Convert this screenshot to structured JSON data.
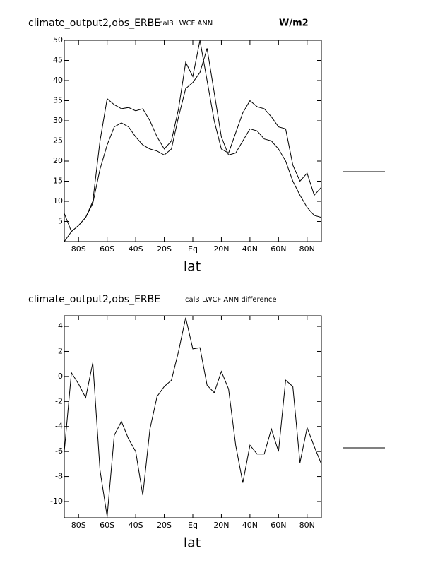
{
  "chart_data": [
    {
      "type": "line",
      "title": "climate_output2,obs_ERBE",
      "subtitle": "cal3 LWCF ANN",
      "units": "W/m2",
      "xlabel": "lat",
      "x": [
        -90,
        -85,
        -80,
        -75,
        -70,
        -65,
        -60,
        -55,
        -50,
        -45,
        -40,
        -35,
        -30,
        -25,
        -20,
        -15,
        -10,
        -5,
        0,
        5,
        10,
        15,
        20,
        25,
        30,
        35,
        40,
        45,
        50,
        55,
        60,
        65,
        70,
        75,
        80,
        85,
        90
      ],
      "series": [
        {
          "color": "#000000",
          "values": [
            7,
            2.5,
            4,
            6,
            10,
            25,
            35.5,
            34,
            33,
            33.3,
            32.5,
            33,
            30,
            26,
            23,
            25,
            33,
            44.5,
            41,
            50,
            40,
            30,
            23,
            22,
            27,
            32,
            35,
            33.5,
            33,
            31,
            28.5,
            28,
            19,
            15,
            17,
            11.5,
            13.5
          ]
        },
        {
          "color": "#000000",
          "values": [
            0,
            2.5,
            4,
            6,
            9.5,
            18,
            24,
            28.5,
            29.5,
            28.5,
            26,
            24,
            23,
            22.5,
            21.5,
            23,
            31,
            38,
            39.5,
            42,
            48,
            37,
            26,
            21.5,
            22,
            25,
            28,
            27.5,
            25.5,
            25,
            23,
            20,
            15,
            11.5,
            8.5,
            6.5,
            6
          ]
        }
      ],
      "xlim": [
        -90,
        90
      ],
      "ylim": [
        0,
        50
      ],
      "xticks": [
        {
          "value": -80,
          "label": "80S"
        },
        {
          "value": -60,
          "label": "60S"
        },
        {
          "value": -40,
          "label": "40S"
        },
        {
          "value": -20,
          "label": "20S"
        },
        {
          "value": 0,
          "label": "Eq"
        },
        {
          "value": 20,
          "label": "20N"
        },
        {
          "value": 40,
          "label": "40N"
        },
        {
          "value": 60,
          "label": "60N"
        },
        {
          "value": 80,
          "label": "80N"
        }
      ],
      "yticks": [
        5,
        10,
        15,
        20,
        25,
        30,
        35,
        40,
        45,
        50
      ]
    },
    {
      "type": "line",
      "title": "climate_output2,obs_ERBE",
      "subtitle": "cal3 LWCF ANN difference",
      "xlabel": "lat",
      "x": [
        -90,
        -85,
        -80,
        -75,
        -70,
        -65,
        -60,
        -55,
        -50,
        -45,
        -40,
        -35,
        -30,
        -25,
        -20,
        -15,
        -10,
        -5,
        0,
        5,
        10,
        15,
        20,
        25,
        30,
        35,
        40,
        45,
        50,
        55,
        60,
        65,
        70,
        75,
        80,
        85,
        90
      ],
      "series": [
        {
          "color": "#000000",
          "values": [
            -6,
            0.3,
            -0.6,
            -1.7,
            1.1,
            -7.5,
            -11.2,
            -4.7,
            -3.6,
            -5,
            -6,
            -9.5,
            -4.2,
            -1.6,
            -0.8,
            -0.3,
            2,
            4.7,
            2.2,
            2.3,
            -0.7,
            -1.3,
            0.4,
            -1,
            -5.5,
            -8.5,
            -5.5,
            -6.2,
            -6.2,
            -4.2,
            -6,
            -0.3,
            -0.8,
            -6.9,
            -4.1,
            -5.6,
            -7
          ]
        }
      ],
      "xlim": [
        -90,
        90
      ],
      "ylim": [
        -11.3,
        4.85
      ],
      "xticks": [
        {
          "value": -80,
          "label": "80S"
        },
        {
          "value": -60,
          "label": "60S"
        },
        {
          "value": -40,
          "label": "40S"
        },
        {
          "value": -20,
          "label": "20S"
        },
        {
          "value": 0,
          "label": "Eq"
        },
        {
          "value": 20,
          "label": "20N"
        },
        {
          "value": 40,
          "label": "40N"
        },
        {
          "value": 60,
          "label": "60N"
        },
        {
          "value": 80,
          "label": "80N"
        }
      ],
      "yticks": [
        4,
        2,
        0,
        -2,
        -4,
        -6,
        -8,
        -10
      ]
    }
  ]
}
